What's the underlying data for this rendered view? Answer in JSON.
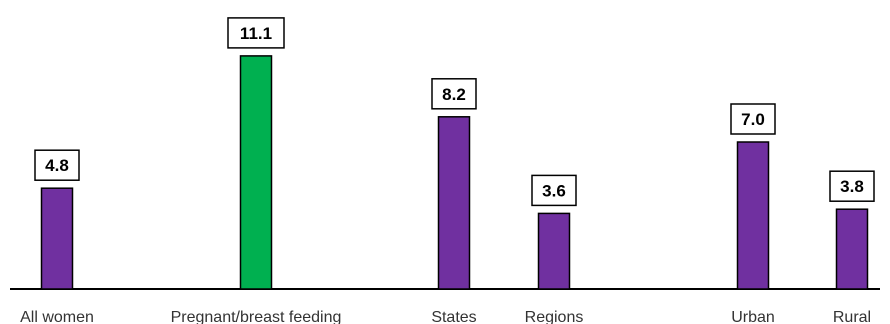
{
  "chart_data": {
    "type": "bar",
    "title": "",
    "xlabel": "",
    "ylabel": "",
    "categories": [
      "All women",
      "Pregnant/breast feeding",
      "States",
      "Regions",
      "Urban",
      "Rural"
    ],
    "values": [
      4.8,
      11.1,
      8.2,
      3.6,
      7.0,
      3.8
    ],
    "value_labels": [
      "4.8",
      "11.1",
      "8.2",
      "3.6",
      "7.0",
      "3.8"
    ],
    "bar_colors": [
      "#7030a0",
      "#00b050",
      "#7030a0",
      "#7030a0",
      "#7030a0",
      "#7030a0"
    ],
    "ylim": [
      0,
      12
    ],
    "grid": false,
    "legend": "none"
  }
}
